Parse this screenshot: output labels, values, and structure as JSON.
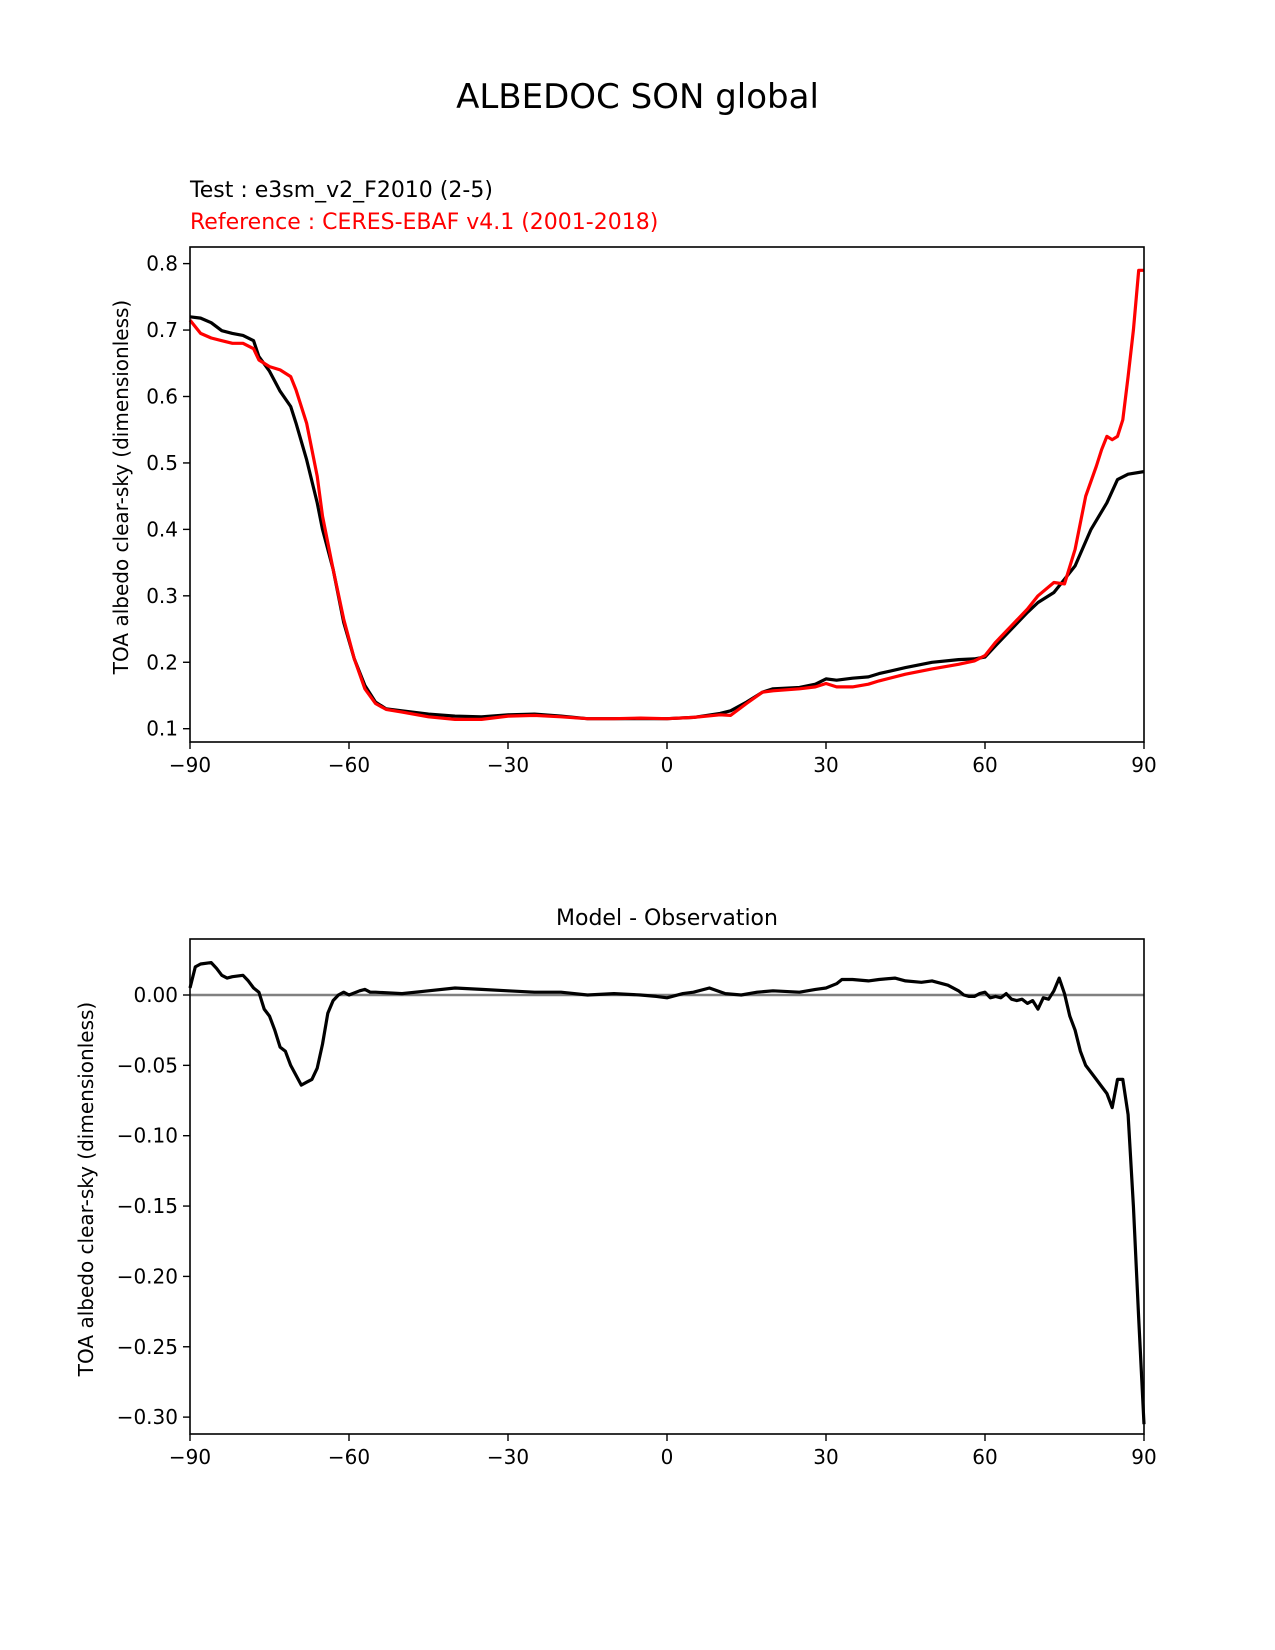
{
  "figure": {
    "title": "ALBEDOC SON global"
  },
  "chart_data": [
    {
      "type": "line",
      "test_label": "Test : e3sm_v2_F2010 (2-5)",
      "reference_label": "Reference : CERES-EBAF v4.1 (2001-2018)",
      "title": "",
      "xlabel": "",
      "ylabel": "TOA albedo clear-sky (dimensionless)",
      "xlim": [
        -90,
        90
      ],
      "ylim": [
        0.08,
        0.825
      ],
      "xticks": [
        -90,
        -60,
        -30,
        0,
        30,
        60,
        90
      ],
      "xtick_labels": [
        "−90",
        "−60",
        "−30",
        "0",
        "30",
        "60",
        "90"
      ],
      "yticks": [
        0.1,
        0.2,
        0.3,
        0.4,
        0.5,
        0.6,
        0.7,
        0.8
      ],
      "ytick_labels": [
        "0.1",
        "0.2",
        "0.3",
        "0.4",
        "0.5",
        "0.6",
        "0.7",
        "0.8"
      ],
      "series": [
        {
          "name": "Test : e3sm_v2_F2010 (2-5)",
          "color": "#000000",
          "x": [
            -90,
            -88,
            -86,
            -84,
            -82,
            -80,
            -78,
            -77,
            -75,
            -73,
            -71,
            -70,
            -68,
            -66,
            -65,
            -63,
            -61,
            -59,
            -57,
            -55,
            -53,
            -50,
            -45,
            -40,
            -35,
            -30,
            -25,
            -20,
            -15,
            -10,
            -5,
            0,
            5,
            10,
            12,
            15,
            18,
            20,
            25,
            28,
            30,
            32,
            35,
            38,
            40,
            45,
            50,
            55,
            58,
            60,
            62,
            65,
            68,
            70,
            73,
            75,
            77,
            80,
            83,
            85,
            87,
            90
          ],
          "values": [
            0.72,
            0.718,
            0.711,
            0.699,
            0.695,
            0.692,
            0.684,
            0.66,
            0.638,
            0.608,
            0.585,
            0.56,
            0.505,
            0.44,
            0.4,
            0.34,
            0.26,
            0.205,
            0.165,
            0.14,
            0.13,
            0.127,
            0.122,
            0.119,
            0.118,
            0.121,
            0.122,
            0.119,
            0.115,
            0.115,
            0.115,
            0.115,
            0.117,
            0.123,
            0.127,
            0.14,
            0.155,
            0.16,
            0.162,
            0.167,
            0.175,
            0.173,
            0.176,
            0.178,
            0.183,
            0.192,
            0.2,
            0.204,
            0.205,
            0.208,
            0.225,
            0.25,
            0.275,
            0.29,
            0.305,
            0.325,
            0.345,
            0.4,
            0.44,
            0.475,
            0.483,
            0.487
          ]
        },
        {
          "name": "Reference : CERES-EBAF v4.1 (2001-2018)",
          "color": "#ff0000",
          "x": [
            -90,
            -88,
            -86,
            -84,
            -82,
            -80,
            -78,
            -77,
            -75,
            -73,
            -71,
            -70,
            -68,
            -66,
            -65,
            -63,
            -61,
            -59,
            -57,
            -55,
            -53,
            -50,
            -45,
            -40,
            -35,
            -30,
            -25,
            -20,
            -15,
            -10,
            -5,
            0,
            5,
            10,
            12,
            15,
            18,
            20,
            25,
            28,
            30,
            32,
            35,
            38,
            40,
            45,
            50,
            55,
            58,
            60,
            62,
            65,
            68,
            70,
            73,
            75,
            77,
            79,
            81,
            82,
            83,
            84,
            85,
            86,
            87,
            88,
            89,
            90
          ],
          "values": [
            0.715,
            0.695,
            0.688,
            0.684,
            0.68,
            0.68,
            0.672,
            0.655,
            0.645,
            0.64,
            0.63,
            0.61,
            0.56,
            0.48,
            0.42,
            0.34,
            0.265,
            0.205,
            0.16,
            0.138,
            0.129,
            0.125,
            0.118,
            0.114,
            0.114,
            0.119,
            0.12,
            0.118,
            0.115,
            0.115,
            0.116,
            0.115,
            0.117,
            0.121,
            0.12,
            0.138,
            0.155,
            0.157,
            0.16,
            0.163,
            0.168,
            0.163,
            0.163,
            0.167,
            0.172,
            0.182,
            0.19,
            0.197,
            0.202,
            0.21,
            0.23,
            0.255,
            0.28,
            0.3,
            0.32,
            0.318,
            0.37,
            0.45,
            0.495,
            0.52,
            0.54,
            0.535,
            0.54,
            0.565,
            0.63,
            0.7,
            0.79,
            0.79
          ]
        }
      ]
    },
    {
      "type": "line",
      "title": "Model - Observation",
      "xlabel": "",
      "ylabel": "TOA albedo clear-sky (dimensionless)",
      "xlim": [
        -90,
        90
      ],
      "ylim": [
        -0.312,
        0.0398
      ],
      "xticks": [
        -90,
        -60,
        -30,
        0,
        30,
        60,
        90
      ],
      "xtick_labels": [
        "−90",
        "−60",
        "−30",
        "0",
        "30",
        "60",
        "90"
      ],
      "yticks": [
        0.0,
        -0.05,
        -0.1,
        -0.15,
        -0.2,
        -0.25,
        -0.3
      ],
      "ytick_labels": [
        "0.00",
        "−0.05",
        "−0.10",
        "−0.15",
        "−0.20",
        "−0.25",
        "−0.30"
      ],
      "zero_line": 0,
      "zero_line_color": "#808080",
      "series": [
        {
          "name": "Model - Observation",
          "color": "#000000",
          "x": [
            -90,
            -89,
            -88,
            -86,
            -85,
            -84,
            -83,
            -82,
            -80,
            -79,
            -78,
            -77,
            -76,
            -75,
            -74,
            -73,
            -72,
            -71,
            -70,
            -69,
            -68,
            -67,
            -66,
            -65,
            -64,
            -63,
            -62,
            -61,
            -60,
            -58,
            -57,
            -56,
            -55,
            -50,
            -45,
            -40,
            -35,
            -30,
            -25,
            -20,
            -15,
            -10,
            -5,
            -2,
            0,
            3,
            5,
            8,
            11,
            14,
            17,
            20,
            25,
            28,
            30,
            32,
            33,
            35,
            38,
            40,
            43,
            45,
            48,
            50,
            53,
            55,
            56,
            57,
            58,
            59,
            60,
            61,
            62,
            63,
            64,
            65,
            66,
            67,
            68,
            69,
            70,
            71,
            72,
            73,
            74,
            75,
            76,
            77,
            78,
            79,
            80,
            81,
            82,
            83,
            84,
            85,
            86,
            87,
            88,
            89,
            90
          ],
          "values": [
            0.005,
            0.02,
            0.022,
            0.023,
            0.019,
            0.014,
            0.012,
            0.013,
            0.014,
            0.01,
            0.005,
            0.002,
            -0.01,
            -0.015,
            -0.025,
            -0.037,
            -0.04,
            -0.05,
            -0.057,
            -0.064,
            -0.062,
            -0.06,
            -0.052,
            -0.035,
            -0.013,
            -0.004,
            0.0,
            0.002,
            0.0,
            0.003,
            0.004,
            0.002,
            0.002,
            0.001,
            0.003,
            0.005,
            0.004,
            0.003,
            0.002,
            0.002,
            0.0,
            0.001,
            0.0,
            -0.001,
            -0.002,
            0.001,
            0.002,
            0.005,
            0.001,
            0.0,
            0.002,
            0.003,
            0.002,
            0.004,
            0.005,
            0.008,
            0.011,
            0.011,
            0.01,
            0.011,
            0.012,
            0.01,
            0.009,
            0.01,
            0.007,
            0.003,
            0.0,
            -0.001,
            -0.001,
            0.001,
            0.002,
            -0.002,
            -0.001,
            -0.002,
            0.001,
            -0.003,
            -0.004,
            -0.003,
            -0.006,
            -0.004,
            -0.01,
            -0.002,
            -0.003,
            0.003,
            0.012,
            0.001,
            -0.015,
            -0.025,
            -0.04,
            -0.05,
            -0.055,
            -0.06,
            -0.065,
            -0.07,
            -0.08,
            -0.06,
            -0.06,
            -0.085,
            -0.15,
            -0.23,
            -0.305
          ]
        }
      ]
    }
  ]
}
